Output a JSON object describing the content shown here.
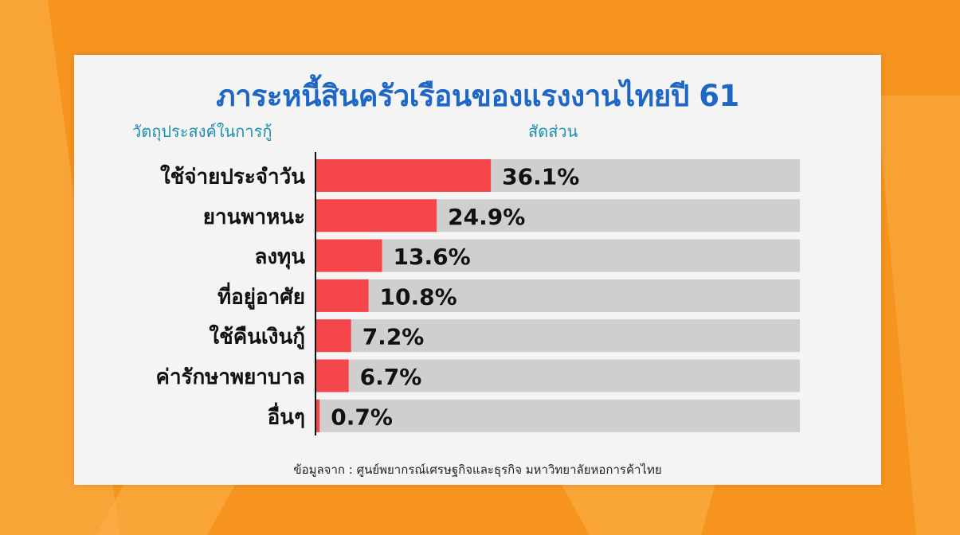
{
  "colors": {
    "background": "#f7941f",
    "card": "#f4f4f4",
    "title": "#1f67c5",
    "column_heading": "#1f8fae",
    "bar": "#f5464c",
    "track": "#cfcfcf"
  },
  "header": {
    "column_category": "วัตถุประสงค์ในการกู้",
    "column_share": "สัดส่วน"
  },
  "footer": {
    "source": "ข้อมูลจาก : ศูนย์พยากรณ์เศรษฐกิจและธุรกิจ มหาวิทยาลัยหอการค้าไทย"
  },
  "chart_data": {
    "type": "bar",
    "orientation": "horizontal",
    "title": "ภาระหนี้สินครัวเรือนของแรงงานไทยปี 61",
    "categories": [
      "ใช้จ่ายประจำวัน",
      "ยานพาหนะ",
      "ลงทุน",
      "ที่อยู่อาศัย",
      "ใช้คืนเงินกู้",
      "ค่ารักษาพยาบาล",
      "อื่นๆ"
    ],
    "values": [
      36.1,
      24.9,
      13.6,
      10.8,
      7.2,
      6.7,
      0.7
    ],
    "value_labels": [
      "36.1%",
      "24.9%",
      "13.6%",
      "10.8%",
      "7.2%",
      "6.7%",
      "0.7%"
    ],
    "xlim": [
      0,
      100
    ],
    "grid": false,
    "legend": "none"
  }
}
